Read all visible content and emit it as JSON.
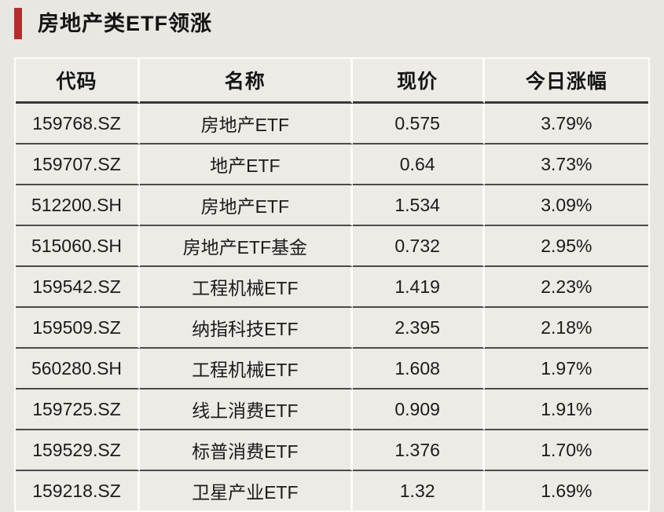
{
  "page": {
    "background_color": "#eae7e2",
    "cell_background_color": "#edebe6",
    "accent_color": "#b22e2e",
    "row_rule_color": "#4b4b4b",
    "separator_color": "#fdfcfa",
    "text_color": "#1b1b1b"
  },
  "header": {
    "title": "房地产类ETF领涨"
  },
  "chart_data": {
    "type": "table",
    "title": "房地产类ETF领涨",
    "columns": [
      "代码",
      "名称",
      "现价",
      "今日涨幅"
    ],
    "rows": [
      {
        "code": "159768.SZ",
        "name": "房地产ETF",
        "price": "0.575",
        "change": "3.79%"
      },
      {
        "code": "159707.SZ",
        "name": "地产ETF",
        "price": "0.64",
        "change": "3.73%"
      },
      {
        "code": "512200.SH",
        "name": "房地产ETF",
        "price": "1.534",
        "change": "3.09%"
      },
      {
        "code": "515060.SH",
        "name": "房地产ETF基金",
        "price": "0.732",
        "change": "2.95%"
      },
      {
        "code": "159542.SZ",
        "name": "工程机械ETF",
        "price": "1.419",
        "change": "2.23%"
      },
      {
        "code": "159509.SZ",
        "name": "纳指科技ETF",
        "price": "2.395",
        "change": "2.18%"
      },
      {
        "code": "560280.SH",
        "name": "工程机械ETF",
        "price": "1.608",
        "change": "1.97%"
      },
      {
        "code": "159725.SZ",
        "name": "线上消费ETF",
        "price": "0.909",
        "change": "1.91%"
      },
      {
        "code": "159529.SZ",
        "name": "标普消费ETF",
        "price": "1.376",
        "change": "1.70%"
      },
      {
        "code": "159218.SZ",
        "name": "卫星产业ETF",
        "price": "1.32",
        "change": "1.69%"
      }
    ]
  }
}
